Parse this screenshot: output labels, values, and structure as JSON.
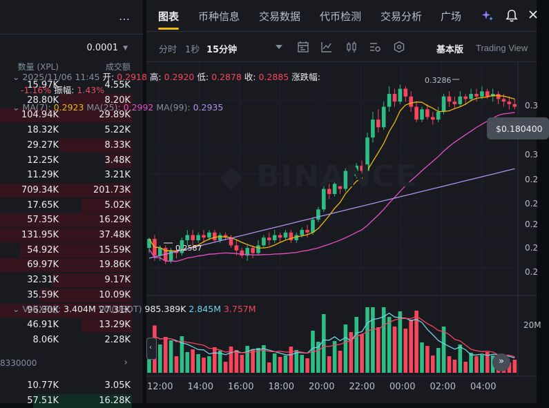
{
  "orderbook": {
    "more_label": "…",
    "tick_size": "0.0001",
    "col_qty": "数量 (XPL)",
    "col_amount": "成交额",
    "asks": [
      {
        "qty": "15.97K",
        "amount": "4.55K",
        "depth": 0.0
      },
      {
        "qty": "28.80K",
        "amount": "8.20K",
        "depth": 0.55
      },
      {
        "qty": "104.94K",
        "amount": "29.89K",
        "depth": 1.0
      },
      {
        "qty": "18.32K",
        "amount": "5.22K",
        "depth": 0.0
      },
      {
        "qty": "29.27K",
        "amount": "8.33K",
        "depth": 0.55
      },
      {
        "qty": "12.25K",
        "amount": "3.48K",
        "depth": 0.2
      },
      {
        "qty": "11.29K",
        "amount": "3.21K",
        "depth": 0.0
      },
      {
        "qty": "709.34K",
        "amount": "201.73K",
        "depth": 1.0
      },
      {
        "qty": "17.65K",
        "amount": "5.02K",
        "depth": 0.38
      },
      {
        "qty": "57.35K",
        "amount": "16.29K",
        "depth": 1.0
      },
      {
        "qty": "131.95K",
        "amount": "37.48K",
        "depth": 1.0
      },
      {
        "qty": "54.92K",
        "amount": "15.59K",
        "depth": 0.85
      },
      {
        "qty": "69.97K",
        "amount": "19.86K",
        "depth": 1.0
      },
      {
        "qty": "32.31K",
        "amount": "9.17K",
        "depth": 0.6
      },
      {
        "qty": "35.59K",
        "amount": "10.09K",
        "depth": 0.7
      },
      {
        "qty": "96.30K",
        "amount": "27.31K",
        "depth": 1.0
      },
      {
        "qty": "46.91K",
        "amount": "13.29K",
        "depth": 0.38
      },
      {
        "qty": "8.06K",
        "amount": "2.28K",
        "depth": 0.0
      }
    ],
    "mid_price": "8330000",
    "bids": [
      {
        "qty": "10.77K",
        "amount": "3.05K",
        "depth": 0.0
      },
      {
        "qty": "57.51K",
        "amount": "16.28K",
        "depth": 0.75
      }
    ]
  },
  "nav": {
    "tabs": [
      "图表",
      "币种信息",
      "交易数据",
      "代币检测",
      "交易分析",
      "广场"
    ],
    "active_tab": "图表"
  },
  "toolbar": {
    "items": [
      "分时",
      "1秒",
      "15分钟"
    ],
    "active": "15分钟",
    "basic_label": "基本版",
    "tradingview_label": "Trading View"
  },
  "ohlc": {
    "date": "2025/11/06 11:45",
    "open_label": "开:",
    "open": "0.2918",
    "high_label": "高:",
    "high": "0.2920",
    "low_label": "低:",
    "low": "0.2878",
    "close_label": "收:",
    "close": "0.2885",
    "change_label": "涨跌幅:",
    "change": "-1.16%",
    "amp_label": "振幅:",
    "amp": "1.43%"
  },
  "ma": {
    "ma7_label": "MA(7):",
    "ma7": "0.2923",
    "ma25_label": "MA(25):",
    "ma25": "0.2992",
    "ma99_label": "MA(99):",
    "ma99": "0.2935"
  },
  "volume": {
    "vol_label": "Vol(XPL):",
    "vol": "3.404M",
    "volusdt_label": "Vol(USDT)",
    "volusdt": "985.389K",
    "vma1": "2.845M",
    "vma2": "3.757M",
    "y_label": "20M"
  },
  "tooltip": "$0.180400",
  "markers": {
    "high": "0.3286",
    "low": "0.2587"
  },
  "colors": {
    "up": "#2ebd85",
    "down": "#f6465d",
    "ma7": "#f0b90b",
    "ma25": "#e84fc7",
    "ma99": "#b28ff0",
    "accent": "#f0b90b"
  },
  "chart_data": {
    "type": "candlestick",
    "x_tick_labels": [
      "12:00",
      "14:00",
      "16:00",
      "18:00",
      "20:00",
      "22:00",
      "00:00",
      "02:00",
      "04:00"
    ],
    "y_tick_labels": [
      "0.3",
      "0.3",
      "0.2",
      "0.2",
      "0.2",
      "0.2",
      "0.2"
    ],
    "candles": [
      [
        0.265,
        0.2685,
        0.263,
        0.269
      ],
      [
        0.2685,
        0.262,
        0.26,
        0.27
      ],
      [
        0.262,
        0.265,
        0.26,
        0.266
      ],
      [
        0.265,
        0.26,
        0.2587,
        0.266
      ],
      [
        0.26,
        0.264,
        0.259,
        0.265
      ],
      [
        0.264,
        0.263,
        0.261,
        0.266
      ],
      [
        0.263,
        0.268,
        0.262,
        0.269
      ],
      [
        0.268,
        0.27,
        0.266,
        0.272
      ],
      [
        0.27,
        0.268,
        0.266,
        0.272
      ],
      [
        0.268,
        0.27,
        0.267,
        0.271
      ],
      [
        0.27,
        0.269,
        0.267,
        0.272
      ],
      [
        0.269,
        0.271,
        0.268,
        0.272
      ],
      [
        0.271,
        0.268,
        0.267,
        0.272
      ],
      [
        0.268,
        0.27,
        0.267,
        0.271
      ],
      [
        0.27,
        0.269,
        0.268,
        0.271
      ],
      [
        0.269,
        0.266,
        0.265,
        0.27
      ],
      [
        0.266,
        0.264,
        0.262,
        0.268
      ],
      [
        0.264,
        0.262,
        0.261,
        0.265
      ],
      [
        0.262,
        0.265,
        0.26,
        0.266
      ],
      [
        0.265,
        0.263,
        0.261,
        0.266
      ],
      [
        0.263,
        0.266,
        0.262,
        0.268
      ],
      [
        0.266,
        0.269,
        0.265,
        0.27
      ],
      [
        0.269,
        0.268,
        0.266,
        0.271
      ],
      [
        0.268,
        0.27,
        0.267,
        0.272
      ],
      [
        0.27,
        0.269,
        0.267,
        0.271
      ],
      [
        0.269,
        0.271,
        0.268,
        0.272
      ],
      [
        0.271,
        0.268,
        0.267,
        0.272
      ],
      [
        0.268,
        0.27,
        0.267,
        0.271
      ],
      [
        0.27,
        0.272,
        0.269,
        0.273
      ],
      [
        0.272,
        0.271,
        0.269,
        0.274
      ],
      [
        0.271,
        0.276,
        0.27,
        0.277
      ],
      [
        0.276,
        0.28,
        0.275,
        0.281
      ],
      [
        0.28,
        0.288,
        0.279,
        0.289
      ],
      [
        0.288,
        0.286,
        0.284,
        0.29
      ],
      [
        0.286,
        0.29,
        0.285,
        0.292
      ],
      [
        0.29,
        0.288,
        0.286,
        0.291
      ],
      [
        0.288,
        0.295,
        0.287,
        0.296
      ],
      [
        0.295,
        0.293,
        0.291,
        0.296
      ],
      [
        0.293,
        0.297,
        0.292,
        0.298
      ],
      [
        0.297,
        0.295,
        0.294,
        0.299
      ],
      [
        0.295,
        0.308,
        0.294,
        0.31
      ],
      [
        0.308,
        0.315,
        0.306,
        0.318
      ],
      [
        0.315,
        0.312,
        0.31,
        0.319
      ],
      [
        0.312,
        0.32,
        0.311,
        0.322
      ],
      [
        0.32,
        0.325,
        0.318,
        0.328
      ],
      [
        0.325,
        0.322,
        0.32,
        0.327
      ],
      [
        0.322,
        0.327,
        0.321,
        0.3286
      ],
      [
        0.327,
        0.324,
        0.322,
        0.328
      ],
      [
        0.324,
        0.32,
        0.318,
        0.326
      ],
      [
        0.32,
        0.315,
        0.314,
        0.322
      ],
      [
        0.315,
        0.319,
        0.314,
        0.32
      ],
      [
        0.319,
        0.316,
        0.315,
        0.321
      ],
      [
        0.316,
        0.315,
        0.313,
        0.318
      ],
      [
        0.315,
        0.318,
        0.314,
        0.32
      ],
      [
        0.318,
        0.324,
        0.317,
        0.325
      ],
      [
        0.324,
        0.322,
        0.32,
        0.326
      ],
      [
        0.322,
        0.321,
        0.319,
        0.324
      ],
      [
        0.321,
        0.324,
        0.32,
        0.326
      ],
      [
        0.324,
        0.323,
        0.321,
        0.325
      ],
      [
        0.323,
        0.325,
        0.322,
        0.327
      ],
      [
        0.325,
        0.324,
        0.322,
        0.327
      ],
      [
        0.324,
        0.326,
        0.323,
        0.328
      ],
      [
        0.326,
        0.324,
        0.323,
        0.327
      ],
      [
        0.324,
        0.325,
        0.322,
        0.327
      ],
      [
        0.325,
        0.323,
        0.321,
        0.326
      ],
      [
        0.323,
        0.322,
        0.32,
        0.325
      ],
      [
        0.322,
        0.321,
        0.319,
        0.324
      ],
      [
        0.321,
        0.32,
        0.319,
        0.323
      ]
    ]
  }
}
